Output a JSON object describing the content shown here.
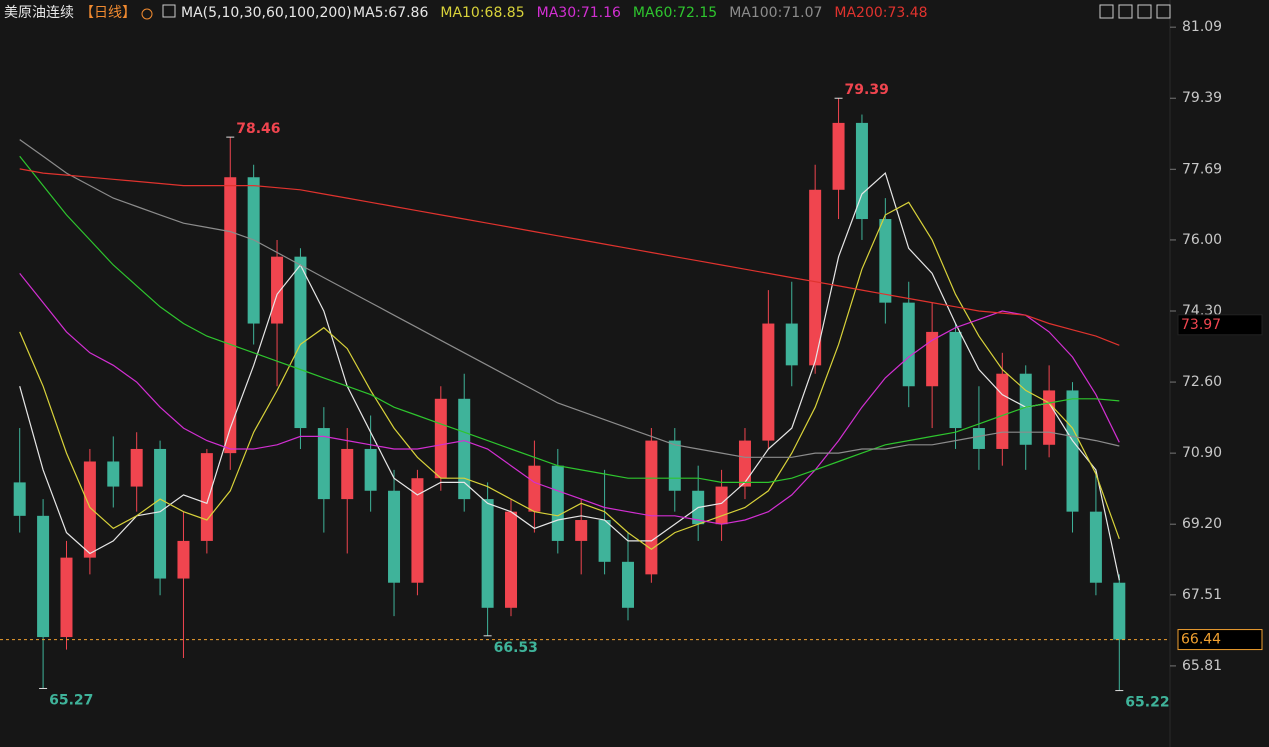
{
  "chart_data": {
    "type": "candlestick",
    "title": "美原油连续",
    "period": "【日线】",
    "ma_label": "MA(5,10,30,60,100,200)",
    "ylim": [
      63.87,
      81.74
    ],
    "yticks": [
      81.09,
      79.39,
      77.69,
      {
        "value": 76,
        "label": "76.00"
      },
      {
        "value": 74.3,
        "label": "74.30"
      },
      {
        "value": 72.6,
        "label": "72.60"
      },
      {
        "value": 70.9,
        "label": "70.90"
      },
      {
        "value": 69.2,
        "label": "69.20"
      },
      67.51,
      65.81
    ],
    "up_color": "#f0454f",
    "down_color": "#3fb39a",
    "ohlc": [
      [
        70.2,
        71.5,
        69.0,
        69.4
      ],
      [
        69.4,
        69.8,
        65.27,
        66.5
      ],
      [
        66.5,
        68.8,
        66.2,
        68.4
      ],
      [
        68.4,
        71.0,
        68.0,
        70.7
      ],
      [
        70.7,
        71.3,
        69.6,
        70.1
      ],
      [
        70.1,
        71.4,
        69.5,
        71.0
      ],
      [
        71.0,
        71.2,
        67.5,
        67.9
      ],
      [
        67.9,
        69.5,
        66.0,
        68.8
      ],
      [
        68.8,
        71.0,
        68.5,
        70.9
      ],
      [
        70.9,
        78.46,
        70.5,
        77.5
      ],
      [
        77.5,
        77.8,
        73.5,
        74.0
      ],
      [
        74.0,
        76.0,
        72.5,
        75.6
      ],
      [
        75.6,
        75.8,
        71.0,
        71.5
      ],
      [
        71.5,
        72.0,
        69.0,
        69.8
      ],
      [
        69.8,
        71.5,
        68.5,
        71.0
      ],
      [
        71.0,
        71.8,
        69.5,
        70.0
      ],
      [
        70.0,
        70.5,
        67.0,
        67.8
      ],
      [
        67.8,
        70.5,
        67.5,
        70.3
      ],
      [
        70.3,
        72.5,
        70.0,
        72.2
      ],
      [
        72.2,
        72.8,
        69.5,
        69.8
      ],
      [
        69.8,
        70.2,
        66.53,
        67.2
      ],
      [
        67.2,
        69.8,
        67.0,
        69.5
      ],
      [
        69.5,
        71.2,
        69.0,
        70.6
      ],
      [
        70.6,
        71.0,
        68.5,
        68.8
      ],
      [
        68.8,
        69.8,
        68.0,
        69.3
      ],
      [
        69.3,
        70.5,
        68.0,
        68.3
      ],
      [
        68.3,
        69.0,
        66.9,
        67.2
      ],
      [
        68.0,
        71.5,
        67.8,
        71.2
      ],
      [
        71.2,
        71.5,
        69.5,
        70.0
      ],
      [
        70.0,
        70.6,
        68.8,
        69.2
      ],
      [
        69.2,
        70.5,
        68.8,
        70.1
      ],
      [
        70.1,
        71.5,
        69.8,
        71.2
      ],
      [
        71.2,
        74.8,
        71.0,
        74.0
      ],
      [
        74.0,
        75.0,
        72.5,
        73.0
      ],
      [
        73.0,
        77.8,
        72.8,
        77.2
      ],
      [
        77.2,
        79.39,
        76.5,
        78.8
      ],
      [
        78.8,
        79.0,
        76.0,
        76.5
      ],
      [
        76.5,
        77.0,
        74.0,
        74.5
      ],
      [
        74.5,
        75.0,
        72.0,
        72.5
      ],
      [
        72.5,
        74.5,
        71.5,
        73.8
      ],
      [
        73.8,
        74.0,
        71.0,
        71.5
      ],
      [
        71.5,
        72.5,
        70.5,
        71.0
      ],
      [
        71.0,
        73.3,
        70.6,
        72.8
      ],
      [
        72.8,
        73.0,
        70.5,
        71.1
      ],
      [
        71.1,
        73.0,
        70.8,
        72.4
      ],
      [
        72.4,
        72.6,
        69.0,
        69.5
      ],
      [
        69.5,
        70.5,
        67.5,
        67.8
      ],
      [
        67.8,
        68.0,
        65.22,
        66.44
      ]
    ],
    "series": [
      {
        "name": "MA5:67.86",
        "color": "#e6e6e6",
        "values": [
          72.5,
          70.5,
          69.0,
          68.5,
          68.8,
          69.4,
          69.5,
          69.9,
          69.7,
          71.5,
          73.0,
          74.7,
          75.4,
          74.3,
          72.5,
          71.4,
          70.3,
          69.9,
          70.2,
          70.2,
          69.7,
          69.5,
          69.1,
          69.3,
          69.4,
          69.3,
          68.8,
          68.8,
          69.2,
          69.6,
          69.7,
          70.2,
          71.0,
          71.5,
          73.1,
          75.6,
          77.1,
          77.6,
          75.8,
          75.2,
          74.0,
          72.9,
          72.3,
          72.0,
          72.1,
          71.2,
          70.5,
          67.86
        ]
      },
      {
        "name": "MA10:68.85",
        "color": "#d8d23a",
        "values": [
          73.8,
          72.5,
          70.9,
          69.6,
          69.1,
          69.4,
          69.8,
          69.5,
          69.3,
          70.0,
          71.4,
          72.4,
          73.5,
          73.9,
          73.4,
          72.4,
          71.5,
          70.8,
          70.3,
          70.3,
          70.1,
          69.8,
          69.5,
          69.4,
          69.7,
          69.5,
          69.0,
          68.6,
          69.0,
          69.2,
          69.4,
          69.6,
          70.0,
          70.9,
          72.0,
          73.5,
          75.3,
          76.6,
          76.9,
          76.0,
          74.7,
          73.7,
          72.9,
          72.4,
          72.1,
          71.5,
          70.4,
          68.85
        ]
      },
      {
        "name": "MA30:71.16",
        "color": "#d22fd2",
        "values": [
          75.2,
          74.5,
          73.8,
          73.3,
          73.0,
          72.6,
          72.0,
          71.5,
          71.2,
          71.0,
          71.0,
          71.1,
          71.3,
          71.3,
          71.2,
          71.1,
          71.0,
          71.0,
          71.1,
          71.2,
          71.0,
          70.6,
          70.2,
          70.0,
          69.8,
          69.6,
          69.5,
          69.4,
          69.4,
          69.3,
          69.2,
          69.3,
          69.5,
          69.9,
          70.5,
          71.2,
          72.0,
          72.7,
          73.2,
          73.6,
          73.9,
          74.1,
          74.3,
          74.2,
          73.8,
          73.2,
          72.3,
          71.16
        ]
      },
      {
        "name": "MA60:72.15",
        "color": "#2ec52e",
        "values": [
          78.0,
          77.3,
          76.6,
          76.0,
          75.4,
          74.9,
          74.4,
          74.0,
          73.7,
          73.5,
          73.3,
          73.1,
          72.9,
          72.7,
          72.5,
          72.3,
          72.0,
          71.8,
          71.6,
          71.4,
          71.2,
          71.0,
          70.8,
          70.6,
          70.5,
          70.4,
          70.3,
          70.3,
          70.3,
          70.3,
          70.2,
          70.2,
          70.2,
          70.3,
          70.5,
          70.7,
          70.9,
          71.1,
          71.2,
          71.3,
          71.4,
          71.6,
          71.8,
          72.0,
          72.1,
          72.2,
          72.2,
          72.15
        ]
      },
      {
        "name": "MA100:71.07",
        "color": "#8c8c8c",
        "values": [
          78.4,
          78.0,
          77.6,
          77.3,
          77.0,
          76.8,
          76.6,
          76.4,
          76.3,
          76.2,
          76.0,
          75.7,
          75.4,
          75.1,
          74.8,
          74.5,
          74.2,
          73.9,
          73.6,
          73.3,
          73.0,
          72.7,
          72.4,
          72.1,
          71.9,
          71.7,
          71.5,
          71.3,
          71.1,
          71.0,
          70.9,
          70.8,
          70.8,
          70.8,
          70.9,
          70.9,
          71.0,
          71.0,
          71.1,
          71.1,
          71.2,
          71.3,
          71.4,
          71.4,
          71.4,
          71.3,
          71.2,
          71.07
        ]
      },
      {
        "name": "MA200:73.48",
        "color": "#e0332e",
        "values": [
          77.7,
          77.6,
          77.55,
          77.5,
          77.45,
          77.4,
          77.35,
          77.3,
          77.3,
          77.3,
          77.3,
          77.25,
          77.2,
          77.1,
          77.0,
          76.9,
          76.8,
          76.7,
          76.6,
          76.5,
          76.4,
          76.3,
          76.2,
          76.1,
          76.0,
          75.9,
          75.8,
          75.7,
          75.6,
          75.5,
          75.4,
          75.3,
          75.2,
          75.1,
          75.0,
          74.9,
          74.8,
          74.7,
          74.6,
          74.5,
          74.4,
          74.3,
          74.25,
          74.2,
          74.0,
          73.85,
          73.7,
          73.48
        ]
      }
    ],
    "extreme_labels": [
      78.46,
      79.39,
      66.53,
      65.27,
      65.22
    ],
    "reference_price": 73.97,
    "last_price": 66.44,
    "last_price_color": "#f0a030"
  }
}
